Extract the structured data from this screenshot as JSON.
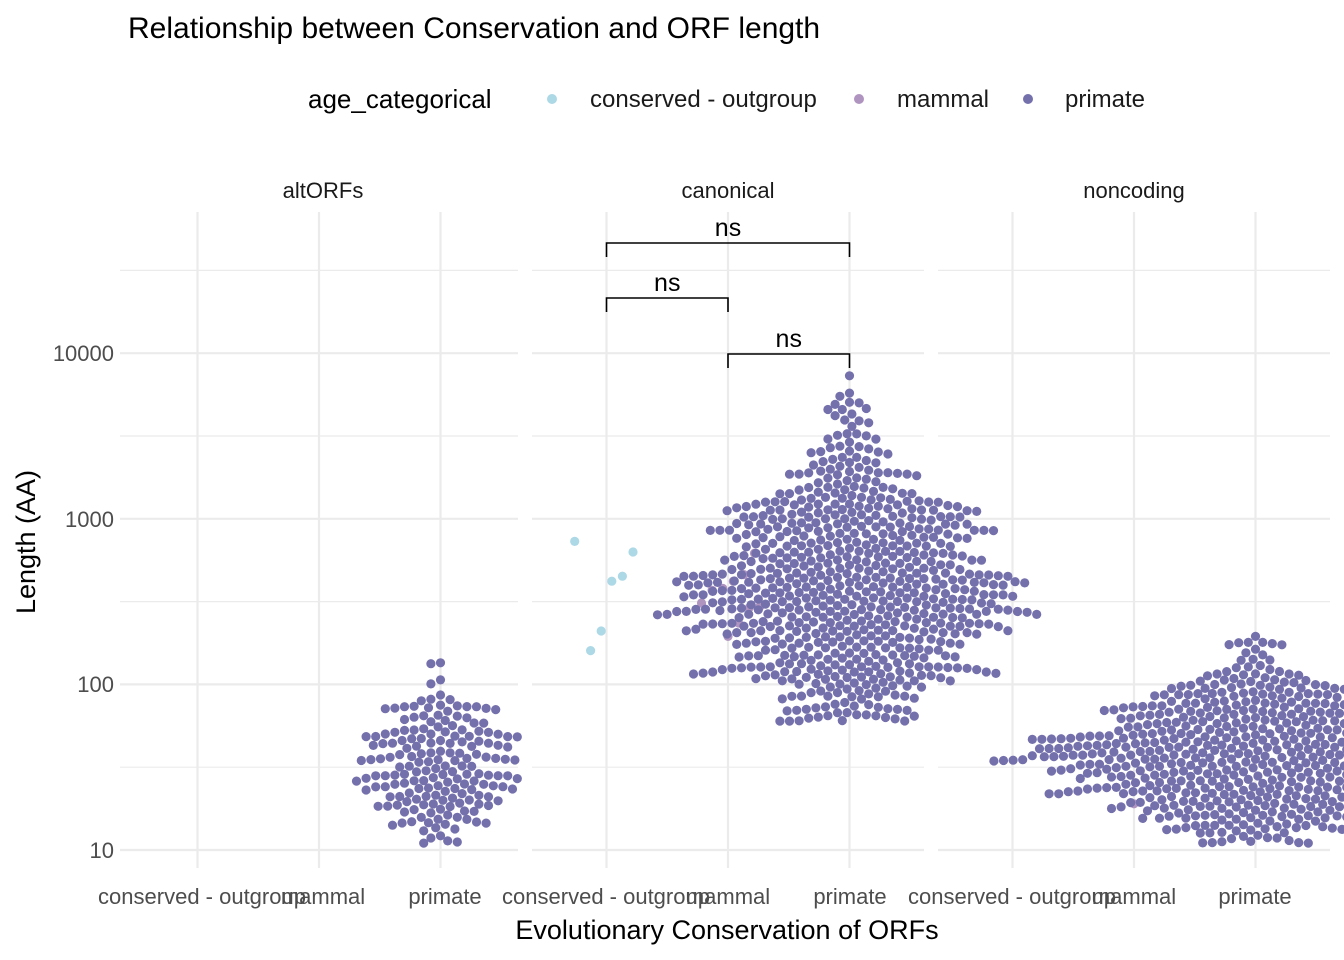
{
  "chart_data": {
    "type": "scatter",
    "subtype": "beeswarm, faceted",
    "title": "Relationship between Conservation and ORF length",
    "xlabel": "Evolutionary Conservation of ORFs",
    "ylabel": "Length (AA)",
    "y_scale": "log10",
    "ylim": [
      10,
      50000
    ],
    "y_ticks": [
      "10",
      "100",
      "1000",
      "10000"
    ],
    "categories": [
      "conserved - outgroup",
      "mammal",
      "primate"
    ],
    "legend": {
      "title": "age_categorical",
      "position": "top",
      "entries": [
        {
          "label": "conserved - outgroup",
          "color": "#add8e6"
        },
        {
          "label": "mammal",
          "color": "#b094c0"
        },
        {
          "label": "primate",
          "color": "#7470ac"
        }
      ]
    },
    "grid": true,
    "facets": [
      {
        "label": "altORFs",
        "series": [
          {
            "category": "primate",
            "n": 180,
            "min": 11,
            "max": 135,
            "median": 30
          }
        ],
        "comparisons": []
      },
      {
        "label": "canonical",
        "series": [
          {
            "category": "conserved - outgroup",
            "values": [
              730,
              630,
              450,
              420,
              210,
              160
            ]
          },
          {
            "category": "mammal",
            "values": [
              620,
              460,
              420,
              380,
              370,
              310,
              295,
              290,
              235,
              195
            ]
          },
          {
            "category": "primate",
            "n": 700,
            "min": 60,
            "max": 7300,
            "median": 350
          }
        ],
        "comparisons": [
          {
            "from": "conserved - outgroup",
            "to": "primate",
            "label": "ns"
          },
          {
            "from": "conserved - outgroup",
            "to": "mammal",
            "label": "ns"
          },
          {
            "from": "mammal",
            "to": "primate",
            "label": "ns"
          }
        ]
      },
      {
        "label": "noncoding",
        "series": [
          {
            "category": "mammal",
            "values": [
              19
            ]
          },
          {
            "category": "primate",
            "n": 600,
            "min": 11,
            "max": 195,
            "median": 35
          }
        ],
        "comparisons": []
      }
    ]
  }
}
